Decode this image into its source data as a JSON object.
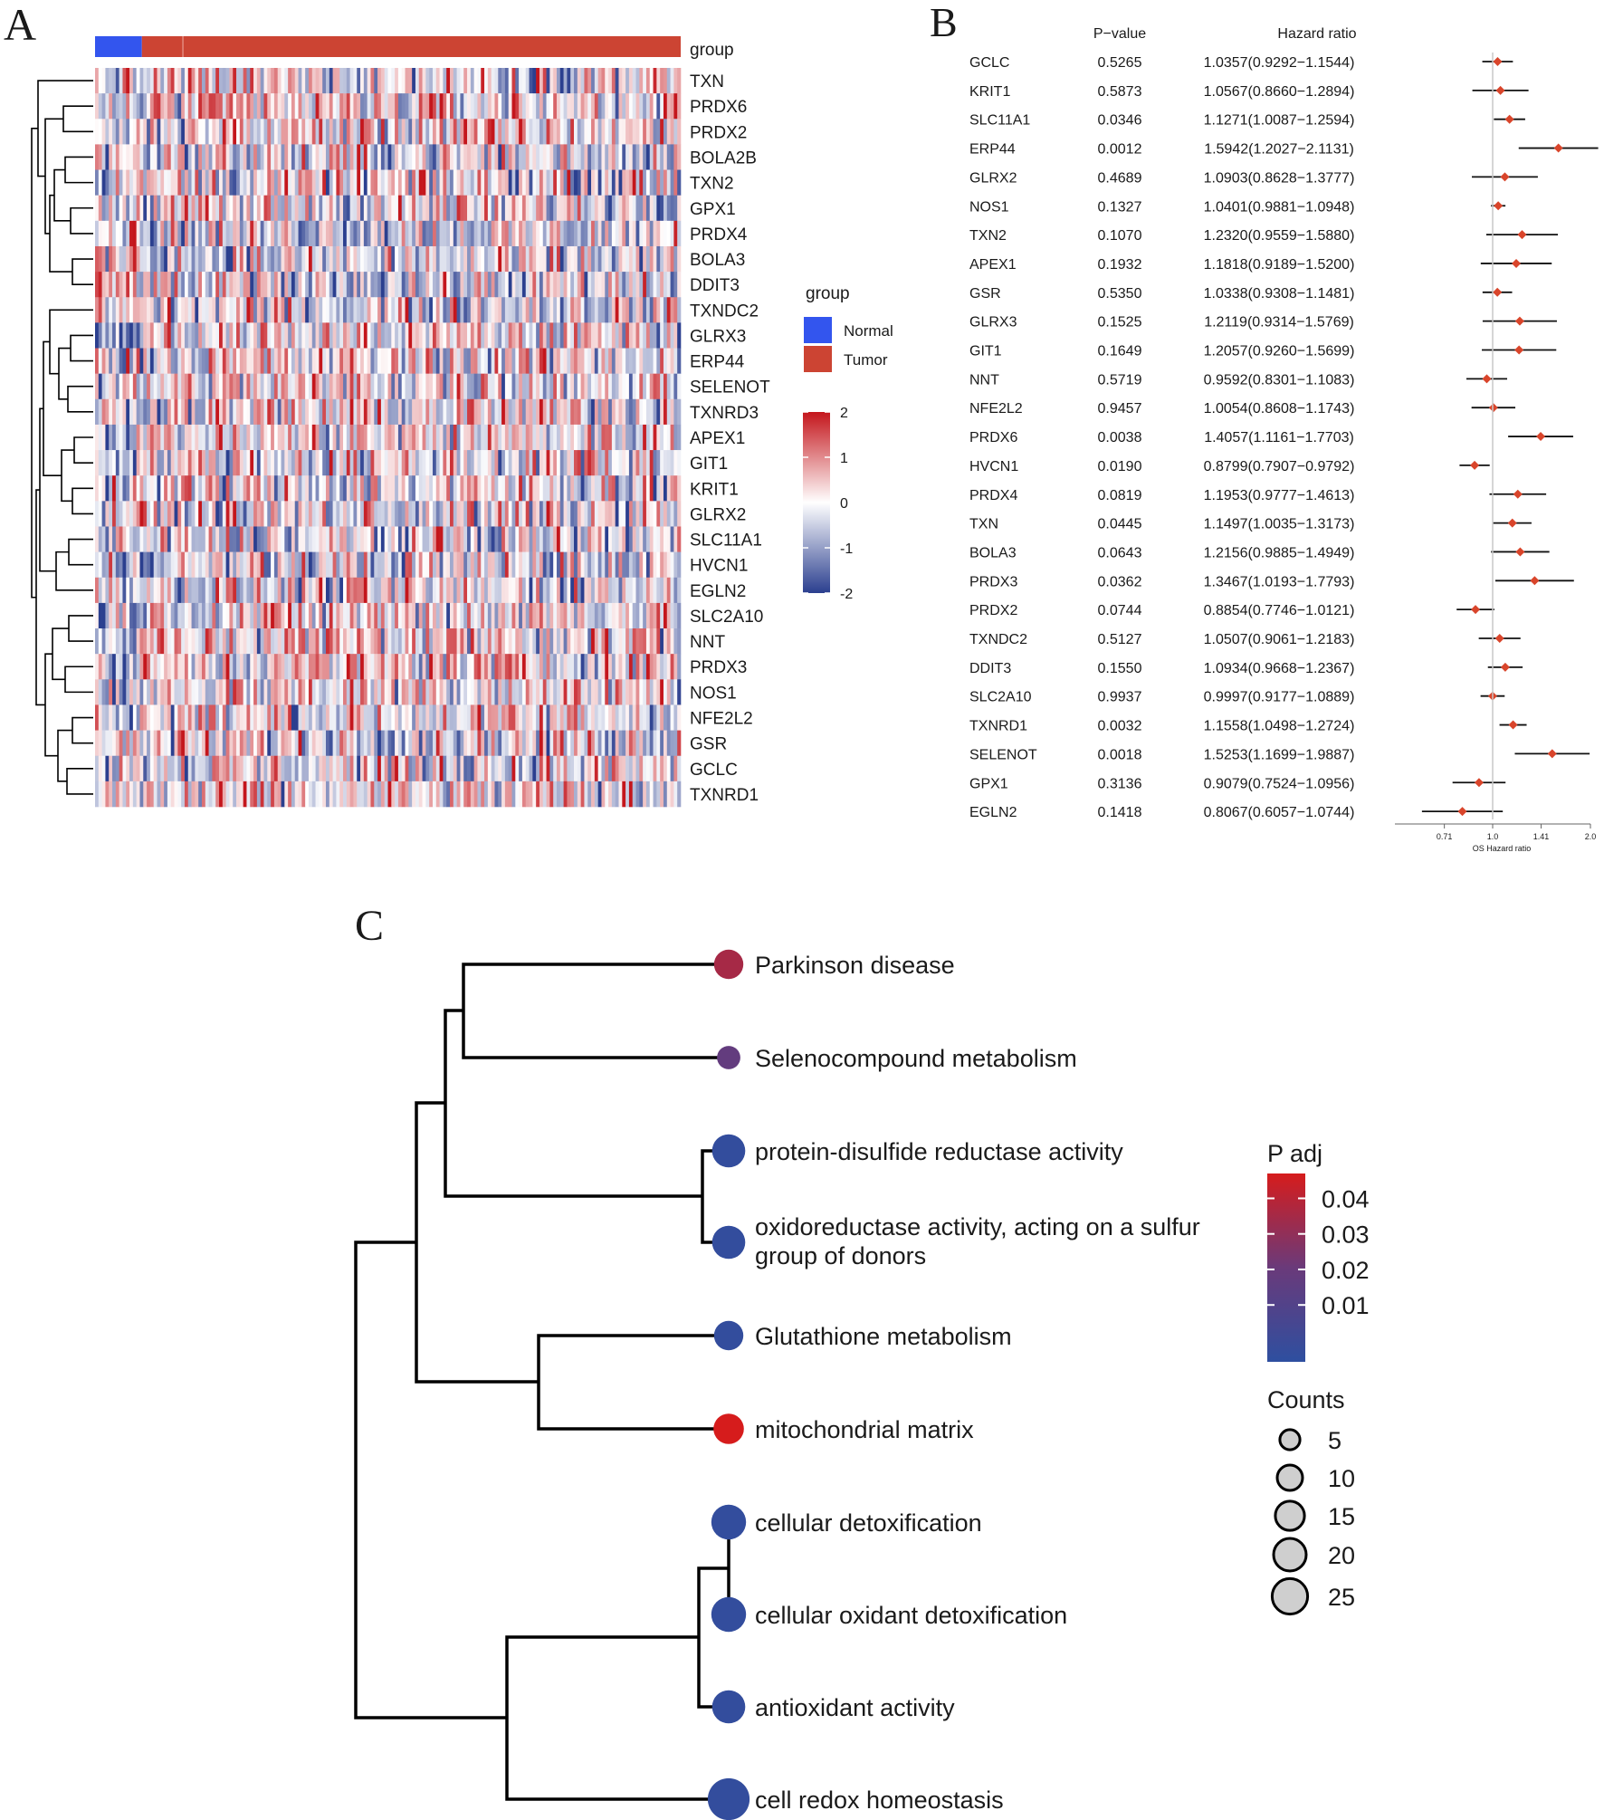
{
  "panels": {
    "a": {
      "letter": "A"
    },
    "b": {
      "letter": "B"
    },
    "c": {
      "letter": "C"
    }
  },
  "chart_data": [
    {
      "type": "heatmap",
      "panel": "A",
      "title": "",
      "annotation_label": "group",
      "group_legend": {
        "title": "group",
        "items": [
          {
            "label": "Normal",
            "color": "#3355ee"
          },
          {
            "label": "Tumor",
            "color": "#cc4433"
          }
        ]
      },
      "colorbar": {
        "ticks": [
          2,
          1,
          0,
          -1,
          -2
        ],
        "low_color": "#2b3f8f",
        "mid_color": "#ffffff",
        "high_color": "#c4161c",
        "range": [
          -2,
          2
        ]
      },
      "rows": [
        "TXN",
        "PRDX6",
        "PRDX2",
        "BOLA2B",
        "TXN2",
        "GPX1",
        "PRDX4",
        "BOLA3",
        "DDIT3",
        "TXNDC2",
        "GLRX3",
        "ERP44",
        "SELENOT",
        "TXNRD3",
        "APEX1",
        "GIT1",
        "KRIT1",
        "GLRX2",
        "SLC11A1",
        "HVCN1",
        "EGLN2",
        "SLC2A10",
        "NNT",
        "PRDX3",
        "NOS1",
        "NFE2L2",
        "GSR",
        "GCLC",
        "TXNRD1"
      ],
      "row_dendrogram": "hierarchical clustering",
      "normal_fraction": 0.08,
      "note": "cell values: z-scored expression, individual cells not readable"
    },
    {
      "type": "forest",
      "panel": "B",
      "columns": {
        "gene": "",
        "pvalue": "P−value",
        "hr": "Hazard ratio"
      },
      "rows": [
        {
          "gene": "GCLC",
          "p": "0.5265",
          "hr_text": "1.0357(0.9292−1.1544)",
          "hr": 1.0357,
          "lo": 0.9292,
          "hi": 1.1544
        },
        {
          "gene": "KRIT1",
          "p": "0.5873",
          "hr_text": "1.0567(0.8660−1.2894)",
          "hr": 1.0567,
          "lo": 0.866,
          "hi": 1.2894
        },
        {
          "gene": "SLC11A1",
          "p": "0.0346",
          "hr_text": "1.1271(1.0087−1.2594)",
          "hr": 1.1271,
          "lo": 1.0087,
          "hi": 1.2594
        },
        {
          "gene": "ERP44",
          "p": "0.0012",
          "hr_text": "1.5942(1.2027−2.1131)",
          "hr": 1.5942,
          "lo": 1.2027,
          "hi": 2.1131
        },
        {
          "gene": "GLRX2",
          "p": "0.4689",
          "hr_text": "1.0903(0.8628−1.3777)",
          "hr": 1.0903,
          "lo": 0.8628,
          "hi": 1.3777
        },
        {
          "gene": "NOS1",
          "p": "0.1327",
          "hr_text": "1.0401(0.9881−1.0948)",
          "hr": 1.0401,
          "lo": 0.9881,
          "hi": 1.0948
        },
        {
          "gene": "TXN2",
          "p": "0.1070",
          "hr_text": "1.2320(0.9559−1.5880)",
          "hr": 1.232,
          "lo": 0.9559,
          "hi": 1.588
        },
        {
          "gene": "APEX1",
          "p": "0.1932",
          "hr_text": "1.1818(0.9189−1.5200)",
          "hr": 1.1818,
          "lo": 0.9189,
          "hi": 1.52
        },
        {
          "gene": "GSR",
          "p": "0.5350",
          "hr_text": "1.0338(0.9308−1.1481)",
          "hr": 1.0338,
          "lo": 0.9308,
          "hi": 1.1481
        },
        {
          "gene": "GLRX3",
          "p": "0.1525",
          "hr_text": "1.2119(0.9314−1.5769)",
          "hr": 1.2119,
          "lo": 0.9314,
          "hi": 1.5769
        },
        {
          "gene": "GIT1",
          "p": "0.1649",
          "hr_text": "1.2057(0.9260−1.5699)",
          "hr": 1.2057,
          "lo": 0.926,
          "hi": 1.5699
        },
        {
          "gene": "NNT",
          "p": "0.5719",
          "hr_text": "0.9592(0.8301−1.1083)",
          "hr": 0.9592,
          "lo": 0.8301,
          "hi": 1.1083
        },
        {
          "gene": "NFE2L2",
          "p": "0.9457",
          "hr_text": "1.0054(0.8608−1.1743)",
          "hr": 1.0054,
          "lo": 0.8608,
          "hi": 1.1743
        },
        {
          "gene": "PRDX6",
          "p": "0.0038",
          "hr_text": "1.4057(1.1161−1.7703)",
          "hr": 1.4057,
          "lo": 1.1161,
          "hi": 1.7703
        },
        {
          "gene": "HVCN1",
          "p": "0.0190",
          "hr_text": "0.8799(0.7907−0.9792)",
          "hr": 0.8799,
          "lo": 0.7907,
          "hi": 0.9792
        },
        {
          "gene": "PRDX4",
          "p": "0.0819",
          "hr_text": "1.1953(0.9777−1.4613)",
          "hr": 1.1953,
          "lo": 0.9777,
          "hi": 1.4613
        },
        {
          "gene": "TXN",
          "p": "0.0445",
          "hr_text": "1.1497(1.0035−1.3173)",
          "hr": 1.1497,
          "lo": 1.0035,
          "hi": 1.3173
        },
        {
          "gene": "BOLA3",
          "p": "0.0643",
          "hr_text": "1.2156(0.9885−1.4949)",
          "hr": 1.2156,
          "lo": 0.9885,
          "hi": 1.4949
        },
        {
          "gene": "PRDX3",
          "p": "0.0362",
          "hr_text": "1.3467(1.0193−1.7793)",
          "hr": 1.3467,
          "lo": 1.0193,
          "hi": 1.7793
        },
        {
          "gene": "PRDX2",
          "p": "0.0744",
          "hr_text": "0.8854(0.7746−1.0121)",
          "hr": 0.8854,
          "lo": 0.7746,
          "hi": 1.0121
        },
        {
          "gene": "TXNDC2",
          "p": "0.5127",
          "hr_text": "1.0507(0.9061−1.2183)",
          "hr": 1.0507,
          "lo": 0.9061,
          "hi": 1.2183
        },
        {
          "gene": "DDIT3",
          "p": "0.1550",
          "hr_text": "1.0934(0.9668−1.2367)",
          "hr": 1.0934,
          "lo": 0.9668,
          "hi": 1.2367
        },
        {
          "gene": "SLC2A10",
          "p": "0.9937",
          "hr_text": "0.9997(0.9177−1.0889)",
          "hr": 0.9997,
          "lo": 0.9177,
          "hi": 1.0889
        },
        {
          "gene": "TXNRD1",
          "p": "0.0032",
          "hr_text": "1.1558(1.0498−1.2724)",
          "hr": 1.1558,
          "lo": 1.0498,
          "hi": 1.2724
        },
        {
          "gene": "SELENOT",
          "p": "0.0018",
          "hr_text": "1.5253(1.1699−1.9887)",
          "hr": 1.5253,
          "lo": 1.1699,
          "hi": 1.9887
        },
        {
          "gene": "GPX1",
          "p": "0.3136",
          "hr_text": "0.9079(0.7524−1.0956)",
          "hr": 0.9079,
          "lo": 0.7524,
          "hi": 1.0956
        },
        {
          "gene": "EGLN2",
          "p": "0.1418",
          "hr_text": "0.8067(0.6057−1.0744)",
          "hr": 0.8067,
          "lo": 0.6057,
          "hi": 1.0744
        }
      ],
      "x_axis": {
        "label": "OS Hazard ratio",
        "ticks": [
          "0.71",
          "1.0",
          "1.41",
          "2.0"
        ],
        "tick_values": [
          0.71,
          1.0,
          1.41,
          2.0
        ],
        "scale": "log",
        "reference_line": 1.0
      },
      "marker_color": "#d9452b"
    },
    {
      "type": "dendrogram",
      "panel": "C",
      "leaves": [
        {
          "label": "Parkinson disease",
          "padj": 0.035,
          "count": 10
        },
        {
          "label": "Selenocompound metabolism",
          "padj": 0.02,
          "count": 5
        },
        {
          "label": "protein-disulfide reductase activity",
          "padj": 0.002,
          "count": 14
        },
        {
          "label": "oxidoreductase activity, acting on a sulfur group of donors",
          "padj": 0.002,
          "count": 14
        },
        {
          "label": "Glutathione metabolism",
          "padj": 0.002,
          "count": 10
        },
        {
          "label": "mitochondrial matrix",
          "padj": 0.045,
          "count": 11
        },
        {
          "label": "cellular detoxification",
          "padj": 0.002,
          "count": 16
        },
        {
          "label": "cellular oxidant detoxification",
          "padj": 0.002,
          "count": 16
        },
        {
          "label": "antioxidant activity",
          "padj": 0.002,
          "count": 14
        },
        {
          "label": "cell redox homeostasis",
          "padj": 0.002,
          "count": 26
        }
      ],
      "color_legend": {
        "title": "P adj",
        "ticks": [
          "0.04",
          "0.03",
          "0.02",
          "0.01"
        ],
        "tick_values": [
          0.04,
          0.03,
          0.02,
          0.01
        ],
        "low_color": "#2e4fa0",
        "high_color": "#d61c1c"
      },
      "size_legend": {
        "title": "Counts",
        "values": [
          5,
          10,
          15,
          20,
          25
        ]
      }
    }
  ]
}
